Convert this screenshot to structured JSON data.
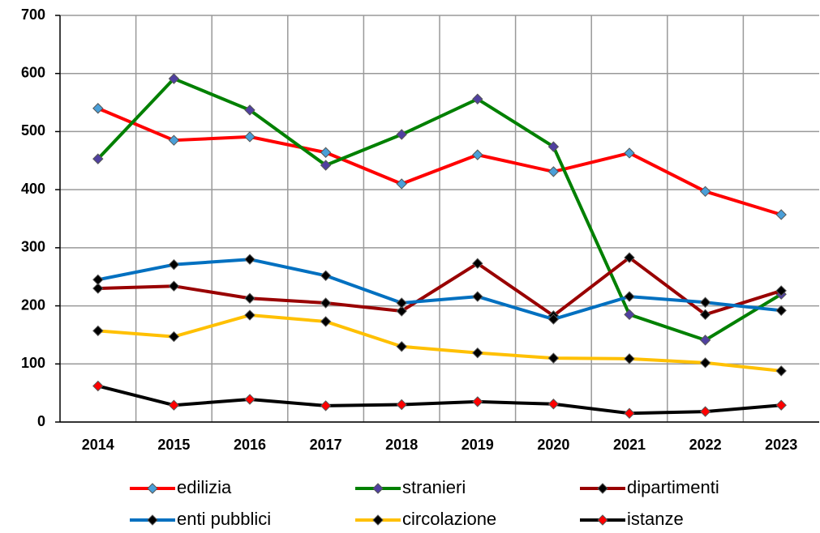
{
  "chart_data": {
    "type": "line",
    "categories": [
      "2014",
      "2015",
      "2016",
      "2017",
      "2018",
      "2019",
      "2020",
      "2021",
      "2022",
      "2023"
    ],
    "series": [
      {
        "name": "edilizia",
        "color": "#ff0000",
        "marker": "#4a9fd8",
        "values": [
          540,
          485,
          491,
          464,
          410,
          460,
          431,
          463,
          397,
          357
        ]
      },
      {
        "name": "stranieri",
        "color": "#008000",
        "marker": "#5040a0",
        "values": [
          453,
          591,
          537,
          442,
          495,
          556,
          474,
          185,
          141,
          220
        ]
      },
      {
        "name": "dipartimenti",
        "color": "#990000",
        "marker": "#000000",
        "values": [
          230,
          234,
          213,
          205,
          191,
          273,
          183,
          283,
          185,
          226
        ]
      },
      {
        "name": "enti pubblici",
        "color": "#0070c0",
        "marker": "#000000",
        "values": [
          245,
          271,
          280,
          252,
          205,
          216,
          177,
          216,
          206,
          192
        ]
      },
      {
        "name": "circolazione",
        "color": "#ffc000",
        "marker": "#000000",
        "values": [
          157,
          147,
          184,
          173,
          130,
          119,
          110,
          109,
          102,
          88
        ]
      },
      {
        "name": "istanze",
        "color": "#000000",
        "marker": "#ff0000",
        "values": [
          62,
          29,
          39,
          28,
          30,
          35,
          31,
          15,
          18,
          29
        ]
      }
    ],
    "ylim": [
      0,
      700
    ],
    "yticks": [
      0,
      100,
      200,
      300,
      400,
      500,
      600,
      700
    ],
    "grid": true,
    "legend": "bottom"
  }
}
